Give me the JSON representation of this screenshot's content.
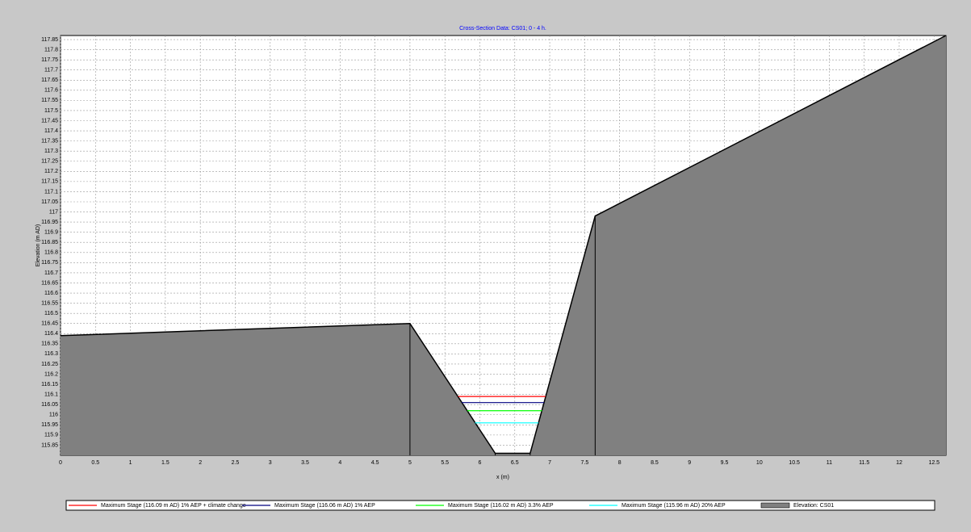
{
  "chart_data": {
    "type": "line",
    "title": "Cross-Section Data: CS01; 0 - 4 h.",
    "xlabel": "x (m)",
    "ylabel": "Elevation (m AD)",
    "xlim": [
      0,
      12.67
    ],
    "ylim": [
      115.8,
      117.87
    ],
    "xticks": [
      0,
      0.5,
      1,
      1.5,
      2,
      2.5,
      3,
      3.5,
      4,
      4.5,
      5,
      5.5,
      6,
      6.5,
      7,
      7.5,
      8,
      8.5,
      9,
      9.5,
      10,
      10.5,
      11,
      11.5,
      12,
      12.5
    ],
    "yticks": [
      115.85,
      115.9,
      115.95,
      116,
      116.05,
      116.1,
      116.15,
      116.2,
      116.25,
      116.3,
      116.35,
      116.4,
      116.45,
      116.5,
      116.55,
      116.6,
      116.65,
      116.7,
      116.75,
      116.8,
      116.85,
      116.9,
      116.95,
      117,
      117.05,
      117.1,
      117.15,
      117.2,
      117.25,
      117.3,
      117.35,
      117.4,
      117.45,
      117.5,
      117.55,
      117.6,
      117.65,
      117.7,
      117.75,
      117.8,
      117.85
    ],
    "grid": true,
    "series": [
      {
        "name": "Maximum Stage (116.09 m AD) 1% AEP + climate change",
        "color": "#ff0000",
        "x": [
          5.69,
          6.94
        ],
        "values": [
          116.09,
          116.09
        ]
      },
      {
        "name": "Maximum Stage (116.06 m AD) 1% AEP",
        "color": "#000080",
        "x": [
          5.74,
          6.92
        ],
        "values": [
          116.06,
          116.06
        ]
      },
      {
        "name": "Maximum Stage (116.02 m AD) 3.3% AEP",
        "color": "#00ff00",
        "x": [
          5.82,
          6.89
        ],
        "values": [
          116.02,
          116.02
        ]
      },
      {
        "name": "Maximum Stage (115.96 m AD) 20% AEP",
        "color": "#00ffff",
        "x": [
          5.93,
          6.84
        ],
        "values": [
          115.96,
          115.96
        ]
      },
      {
        "name": "Elevation: CS01",
        "color": "#808080",
        "fill": true,
        "x": [
          0,
          5,
          6.22,
          6.72,
          7.65,
          12.67
        ],
        "values": [
          116.39,
          116.45,
          115.81,
          115.81,
          116.98,
          117.87
        ]
      }
    ]
  }
}
